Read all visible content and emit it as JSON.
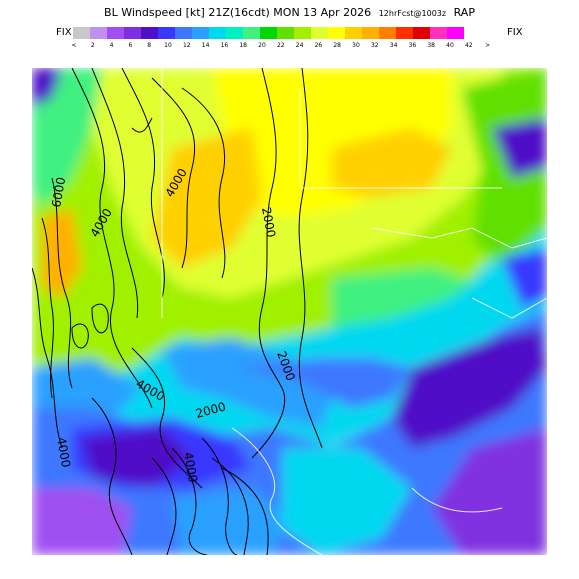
{
  "header": {
    "title_main": "BL Windspeed [kt] 21Z(16cdt) MON 13 Apr 2026",
    "title_fcst": "12hrFcst@1003z",
    "title_model": "RAP"
  },
  "legend": {
    "left_label": "FIX",
    "right_label": "FIX",
    "colors": [
      "#c8c8c8",
      "#c090f0",
      "#a050f0",
      "#8030e0",
      "#5010c8",
      "#3838ff",
      "#3c78ff",
      "#2ca0ff",
      "#00d8f0",
      "#00f0c0",
      "#40f080",
      "#00d800",
      "#60e000",
      "#a0f000",
      "#e0ff30",
      "#ffff00",
      "#ffd000",
      "#ffb000",
      "#ff8000",
      "#ff3000",
      "#e00000",
      "#ff30c0",
      "#ff00ff"
    ],
    "ticks": [
      "<",
      "2",
      "4",
      "6",
      "8",
      "10",
      "12",
      "14",
      "16",
      "18",
      "20",
      "22",
      "24",
      "26",
      "28",
      "30",
      "32",
      "34",
      "36",
      "38",
      "40",
      "42",
      ">"
    ]
  },
  "map": {
    "contour_labels": [
      "6000",
      "4000",
      "4000",
      "2000",
      "2000",
      "2000",
      "4000",
      "4000",
      "4000"
    ]
  }
}
